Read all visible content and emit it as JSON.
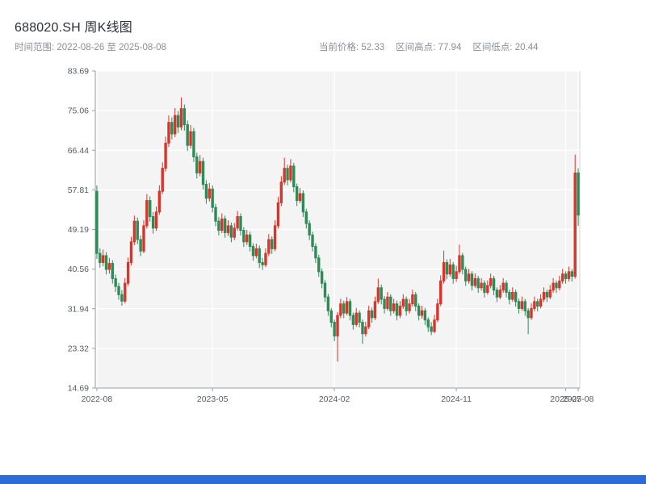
{
  "header": {
    "title": "688020.SH 周K线图",
    "time_range": "时间范围: 2022-08-26 至 2025-08-08",
    "current_price_label": "当前价格: 52.33",
    "range_high_label": "区间高点: 77.94",
    "range_low_label": "区间低点: 20.44"
  },
  "page": {
    "bottom_bar_color": "#2e6bd6"
  },
  "chart_data": {
    "type": "candlestick",
    "title": "688020.SH 周K线图",
    "frequency": "weekly",
    "start_date": "2022-08-26",
    "end_date": "2025-08-08",
    "current_price": 52.33,
    "range_high": 77.94,
    "range_low": 20.44,
    "ylim": [
      14.69,
      83.69
    ],
    "y_ticks": [
      14.69,
      23.32,
      31.94,
      40.56,
      49.19,
      57.81,
      66.44,
      75.06,
      83.69
    ],
    "x_ticks": [
      {
        "index": 0,
        "label": "2022-08"
      },
      {
        "index": 37,
        "label": "2023-05"
      },
      {
        "index": 76,
        "label": "2024-02"
      },
      {
        "index": 115,
        "label": "2024-11"
      },
      {
        "index": 150,
        "label": "2025-07"
      },
      {
        "index": 154,
        "label": "2025-08"
      }
    ],
    "colors": {
      "up": "#d9352b",
      "down": "#2e8b57",
      "plot_bg": "#f4f4f4",
      "grid": "#ffffff",
      "border": "#d9d9d9",
      "axis": "#9aa0a6",
      "tick_text": "#555b63"
    },
    "grid": true,
    "legend": "none",
    "candle_format": [
      "open",
      "close",
      "low",
      "high"
    ],
    "candles": [
      [
        57.5,
        44.0,
        42.8,
        58.8
      ],
      [
        44.0,
        42.0,
        40.9,
        45.1
      ],
      [
        42.0,
        43.5,
        41.2,
        44.8
      ],
      [
        43.5,
        40.5,
        39.4,
        44.3
      ],
      [
        40.5,
        41.8,
        39.6,
        43.0
      ],
      [
        41.8,
        38.5,
        37.4,
        42.5
      ],
      [
        38.5,
        36.8,
        35.6,
        39.4
      ],
      [
        36.8,
        35.0,
        33.9,
        37.6
      ],
      [
        35.0,
        33.6,
        32.6,
        36.0
      ],
      [
        33.6,
        37.5,
        33.1,
        38.6
      ],
      [
        37.5,
        42.0,
        36.9,
        43.1
      ],
      [
        42.0,
        46.5,
        41.4,
        47.6
      ],
      [
        46.5,
        51.0,
        45.8,
        52.2
      ],
      [
        51.0,
        47.0,
        46.0,
        51.8
      ],
      [
        47.0,
        44.5,
        43.4,
        47.9
      ],
      [
        44.5,
        50.0,
        44.0,
        51.2
      ],
      [
        50.0,
        55.5,
        49.4,
        56.9
      ],
      [
        55.5,
        52.0,
        50.9,
        56.4
      ],
      [
        52.0,
        49.5,
        48.3,
        53.0
      ],
      [
        49.5,
        53.0,
        48.9,
        54.2
      ],
      [
        53.0,
        57.5,
        52.4,
        58.8
      ],
      [
        57.5,
        62.5,
        56.9,
        63.8
      ],
      [
        62.5,
        68.0,
        61.8,
        69.4
      ],
      [
        68.0,
        72.5,
        67.2,
        74.0
      ],
      [
        72.5,
        70.0,
        68.8,
        73.6
      ],
      [
        70.0,
        74.0,
        69.3,
        75.6
      ],
      [
        74.0,
        71.5,
        70.2,
        75.0
      ],
      [
        71.5,
        75.5,
        70.8,
        77.94
      ],
      [
        75.5,
        72.0,
        70.7,
        76.4
      ],
      [
        72.0,
        67.5,
        66.3,
        72.9
      ],
      [
        67.5,
        70.5,
        66.8,
        71.9
      ],
      [
        70.5,
        65.0,
        63.9,
        71.3
      ],
      [
        65.0,
        61.5,
        60.3,
        65.9
      ],
      [
        61.5,
        64.0,
        60.8,
        65.4
      ],
      [
        64.0,
        59.0,
        57.9,
        64.8
      ],
      [
        59.0,
        56.0,
        54.8,
        59.9
      ],
      [
        56.0,
        58.0,
        55.3,
        59.3
      ],
      [
        58.0,
        54.0,
        52.9,
        58.8
      ],
      [
        54.0,
        51.0,
        49.9,
        54.8
      ],
      [
        51.0,
        49.0,
        47.9,
        51.9
      ],
      [
        49.0,
        51.5,
        48.4,
        52.7
      ],
      [
        51.5,
        48.5,
        47.4,
        52.2
      ],
      [
        48.5,
        50.0,
        47.8,
        51.2
      ],
      [
        50.0,
        47.5,
        46.4,
        50.7
      ],
      [
        47.5,
        49.5,
        46.9,
        50.6
      ],
      [
        49.5,
        52.0,
        48.9,
        53.2
      ],
      [
        52.0,
        49.0,
        47.9,
        52.7
      ],
      [
        49.0,
        46.5,
        45.4,
        49.7
      ],
      [
        46.5,
        48.0,
        45.8,
        49.1
      ],
      [
        48.0,
        45.5,
        44.4,
        48.7
      ],
      [
        45.5,
        43.5,
        42.4,
        46.2
      ],
      [
        43.5,
        45.0,
        42.9,
        46.1
      ],
      [
        45.0,
        42.0,
        40.8,
        45.7
      ],
      [
        42.0,
        41.5,
        40.4,
        43.0
      ],
      [
        41.5,
        44.0,
        41.0,
        45.1
      ],
      [
        44.0,
        47.0,
        43.4,
        48.2
      ],
      [
        47.0,
        45.0,
        43.9,
        47.7
      ],
      [
        45.0,
        50.0,
        44.5,
        51.2
      ],
      [
        50.0,
        55.0,
        49.4,
        56.3
      ],
      [
        55.0,
        59.5,
        54.3,
        60.8
      ],
      [
        59.5,
        62.5,
        58.9,
        64.8
      ],
      [
        62.5,
        60.0,
        58.8,
        63.3
      ],
      [
        60.0,
        63.0,
        59.4,
        64.5
      ],
      [
        63.0,
        58.5,
        57.3,
        63.7
      ],
      [
        58.5,
        55.5,
        54.3,
        59.2
      ],
      [
        55.5,
        57.0,
        54.9,
        58.2
      ],
      [
        57.0,
        53.0,
        51.9,
        57.7
      ],
      [
        53.0,
        50.5,
        49.4,
        53.7
      ],
      [
        50.5,
        48.0,
        46.9,
        51.2
      ],
      [
        48.0,
        45.5,
        44.4,
        48.7
      ],
      [
        45.5,
        43.0,
        41.9,
        46.2
      ],
      [
        43.0,
        40.0,
        38.9,
        43.7
      ],
      [
        40.0,
        37.5,
        36.4,
        40.7
      ],
      [
        37.5,
        34.5,
        33.4,
        38.2
      ],
      [
        34.5,
        31.5,
        30.4,
        35.2
      ],
      [
        31.5,
        29.0,
        27.9,
        32.1
      ],
      [
        29.0,
        26.0,
        24.9,
        29.6
      ],
      [
        26.0,
        30.5,
        20.44,
        31.2
      ],
      [
        30.5,
        33.0,
        29.9,
        34.1
      ],
      [
        33.0,
        31.0,
        29.9,
        33.7
      ],
      [
        31.0,
        33.5,
        30.5,
        34.5
      ],
      [
        33.5,
        30.5,
        29.4,
        34.1
      ],
      [
        30.5,
        28.5,
        27.4,
        31.1
      ],
      [
        28.5,
        31.0,
        28.0,
        32.1
      ],
      [
        31.0,
        29.0,
        27.9,
        31.6
      ],
      [
        29.0,
        26.5,
        24.3,
        29.6
      ],
      [
        26.5,
        28.0,
        25.9,
        29.1
      ],
      [
        28.0,
        31.5,
        27.5,
        32.6
      ],
      [
        31.5,
        30.0,
        28.9,
        32.2
      ],
      [
        30.0,
        33.5,
        29.5,
        34.6
      ],
      [
        33.5,
        36.5,
        33.0,
        38.5
      ],
      [
        36.5,
        34.0,
        32.9,
        37.2
      ],
      [
        34.0,
        32.0,
        30.9,
        34.7
      ],
      [
        32.0,
        34.5,
        31.5,
        35.6
      ],
      [
        34.5,
        31.5,
        30.4,
        35.1
      ],
      [
        31.5,
        33.0,
        30.9,
        34.1
      ],
      [
        33.0,
        30.5,
        29.4,
        33.7
      ],
      [
        30.5,
        32.5,
        29.9,
        33.6
      ],
      [
        32.5,
        34.0,
        31.9,
        35.1
      ],
      [
        34.0,
        31.5,
        30.4,
        34.6
      ],
      [
        31.5,
        33.0,
        30.9,
        34.1
      ],
      [
        33.0,
        35.0,
        32.4,
        36.1
      ],
      [
        35.0,
        32.5,
        31.4,
        35.6
      ],
      [
        32.5,
        30.5,
        29.4,
        33.1
      ],
      [
        30.5,
        31.5,
        29.8,
        32.6
      ],
      [
        31.5,
        29.5,
        28.4,
        32.1
      ],
      [
        29.5,
        28.0,
        26.9,
        30.1
      ],
      [
        28.0,
        27.0,
        26.2,
        29.0
      ],
      [
        27.0,
        29.5,
        26.6,
        30.6
      ],
      [
        29.5,
        33.0,
        29.0,
        34.1
      ],
      [
        33.0,
        38.0,
        32.5,
        39.2
      ],
      [
        38.0,
        42.0,
        37.4,
        44.6
      ],
      [
        42.0,
        39.5,
        38.4,
        42.7
      ],
      [
        39.5,
        41.5,
        38.9,
        42.8
      ],
      [
        41.5,
        38.5,
        37.4,
        42.1
      ],
      [
        38.5,
        40.0,
        37.8,
        41.3
      ],
      [
        40.0,
        43.5,
        39.5,
        45.9
      ],
      [
        43.5,
        40.5,
        39.4,
        44.1
      ],
      [
        40.5,
        38.0,
        36.9,
        41.1
      ],
      [
        38.0,
        39.5,
        37.4,
        40.6
      ],
      [
        39.5,
        37.0,
        35.9,
        40.1
      ],
      [
        37.0,
        38.5,
        36.5,
        39.6
      ],
      [
        38.5,
        36.5,
        35.4,
        39.1
      ],
      [
        36.5,
        37.5,
        35.9,
        38.6
      ],
      [
        37.5,
        35.5,
        34.4,
        38.1
      ],
      [
        35.5,
        37.0,
        35.0,
        38.1
      ],
      [
        37.0,
        38.5,
        36.4,
        39.6
      ],
      [
        38.5,
        36.0,
        34.9,
        39.1
      ],
      [
        36.0,
        34.5,
        33.4,
        36.6
      ],
      [
        34.5,
        36.0,
        34.0,
        37.1
      ],
      [
        36.0,
        37.5,
        35.4,
        38.6
      ],
      [
        37.5,
        35.5,
        34.4,
        38.1
      ],
      [
        35.5,
        34.0,
        32.9,
        36.1
      ],
      [
        34.0,
        35.5,
        33.5,
        36.6
      ],
      [
        35.5,
        33.5,
        32.4,
        36.1
      ],
      [
        33.5,
        32.0,
        30.9,
        34.1
      ],
      [
        32.0,
        33.5,
        31.5,
        34.6
      ],
      [
        33.5,
        31.5,
        30.4,
        34.1
      ],
      [
        31.5,
        30.0,
        26.4,
        32.1
      ],
      [
        30.0,
        32.0,
        29.5,
        33.1
      ],
      [
        32.0,
        33.5,
        31.4,
        34.6
      ],
      [
        33.5,
        32.5,
        31.4,
        34.1
      ],
      [
        32.5,
        34.0,
        32.0,
        35.1
      ],
      [
        34.0,
        35.5,
        33.4,
        36.6
      ],
      [
        35.5,
        34.5,
        33.4,
        36.1
      ],
      [
        34.5,
        36.0,
        34.0,
        37.1
      ],
      [
        36.0,
        37.5,
        35.4,
        38.6
      ],
      [
        37.5,
        36.5,
        35.4,
        38.1
      ],
      [
        36.5,
        38.0,
        35.9,
        39.1
      ],
      [
        38.0,
        39.5,
        37.4,
        40.6
      ],
      [
        39.5,
        38.5,
        37.4,
        40.1
      ],
      [
        38.5,
        40.0,
        37.9,
        41.1
      ],
      [
        40.0,
        39.0,
        37.9,
        40.6
      ],
      [
        39.0,
        61.5,
        38.5,
        65.5
      ],
      [
        61.5,
        52.33,
        50.0,
        62.5
      ]
    ]
  }
}
